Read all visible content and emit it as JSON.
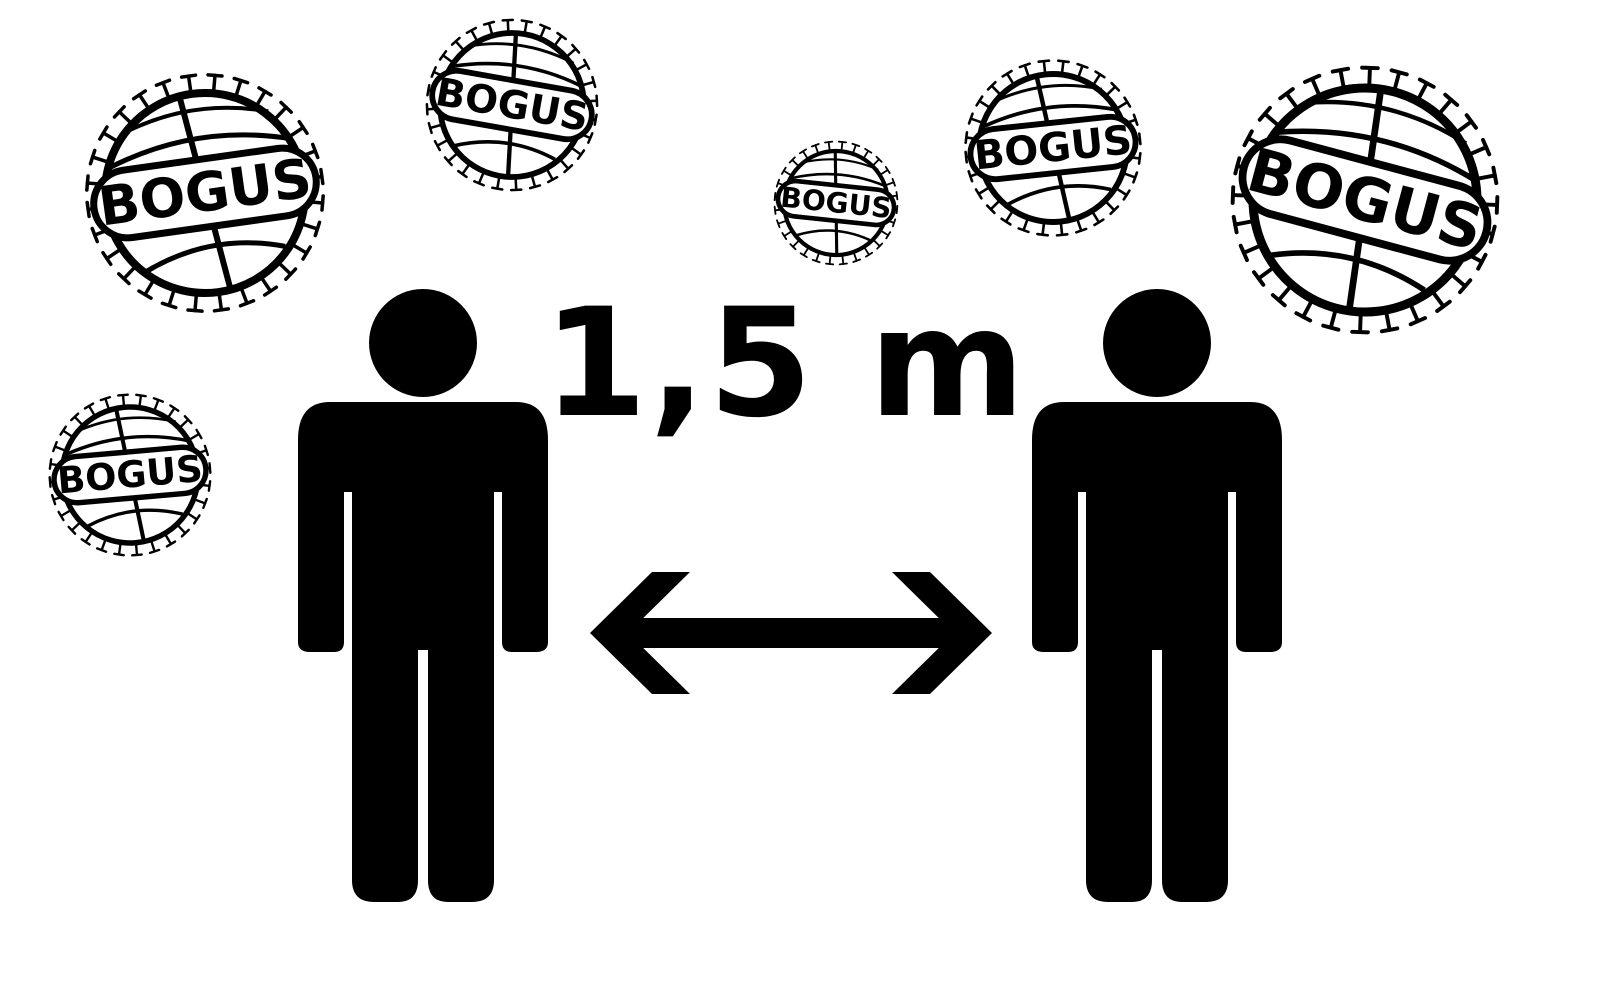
{
  "sign": {
    "distance_label": "1,5 m",
    "virus_label": "BOGUS"
  },
  "colors": {
    "ink": "#000000",
    "background": "#ffffff"
  },
  "icons": {
    "person": "person-icon",
    "distance_arrow": "double-arrow-icon",
    "virus": "virus-icon"
  }
}
